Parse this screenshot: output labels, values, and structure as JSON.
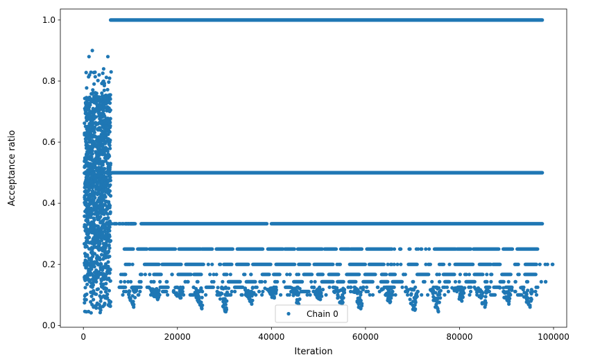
{
  "chart_data": {
    "type": "scatter",
    "title": "",
    "xlabel": "Iteration",
    "ylabel": "Acceptance ratio",
    "xlim": [
      -4900,
      102800
    ],
    "ylim": [
      -0.006,
      1.036
    ],
    "xticks": [
      0,
      20000,
      40000,
      60000,
      80000,
      100000
    ],
    "xtick_labels": [
      "0",
      "20000",
      "40000",
      "60000",
      "80000",
      "100000"
    ],
    "yticks": [
      0.0,
      0.2,
      0.4,
      0.6,
      0.8,
      1.0
    ],
    "ytick_labels": [
      "0.0",
      "0.2",
      "0.4",
      "0.6",
      "0.8",
      "1.0"
    ],
    "grid": false,
    "legend_position": "lower-center",
    "series": [
      {
        "name": "Chain 0",
        "color": "#1f77b4",
        "marker": "circle",
        "description": "Acceptance ratio per iteration, iterations 0–97600",
        "burn_in_end": 5800,
        "burn_in_range": [
          0.04,
          0.9
        ],
        "burn_in_outliers": [
          [
            1200,
            0.88
          ],
          [
            1300,
            0.82
          ],
          [
            1900,
            0.9
          ],
          [
            4300,
            0.84
          ],
          [
            5200,
            0.88
          ],
          [
            5900,
            0.83
          ]
        ],
        "levels_after_burn_in": [
          1.0,
          0.5,
          0.333,
          0.25,
          0.2,
          0.167,
          0.143,
          0.125,
          0.111,
          0.1
        ],
        "x_end": 97600,
        "low_clusters": [
          {
            "x": 10700,
            "min": 0.06
          },
          {
            "x": 15800,
            "min": 0.085
          },
          {
            "x": 20600,
            "min": 0.09
          },
          {
            "x": 25200,
            "min": 0.055
          },
          {
            "x": 30300,
            "min": 0.045
          },
          {
            "x": 35800,
            "min": 0.07
          },
          {
            "x": 40600,
            "min": 0.09
          },
          {
            "x": 45800,
            "min": 0.07
          },
          {
            "x": 50400,
            "min": 0.085
          },
          {
            "x": 55000,
            "min": 0.07
          },
          {
            "x": 59000,
            "min": 0.055
          },
          {
            "x": 65200,
            "min": 0.075
          },
          {
            "x": 70500,
            "min": 0.05
          },
          {
            "x": 75500,
            "min": 0.045
          },
          {
            "x": 80500,
            "min": 0.08
          },
          {
            "x": 85400,
            "min": 0.06
          },
          {
            "x": 90500,
            "min": 0.07
          },
          {
            "x": 95000,
            "min": 0.06
          }
        ]
      }
    ]
  }
}
